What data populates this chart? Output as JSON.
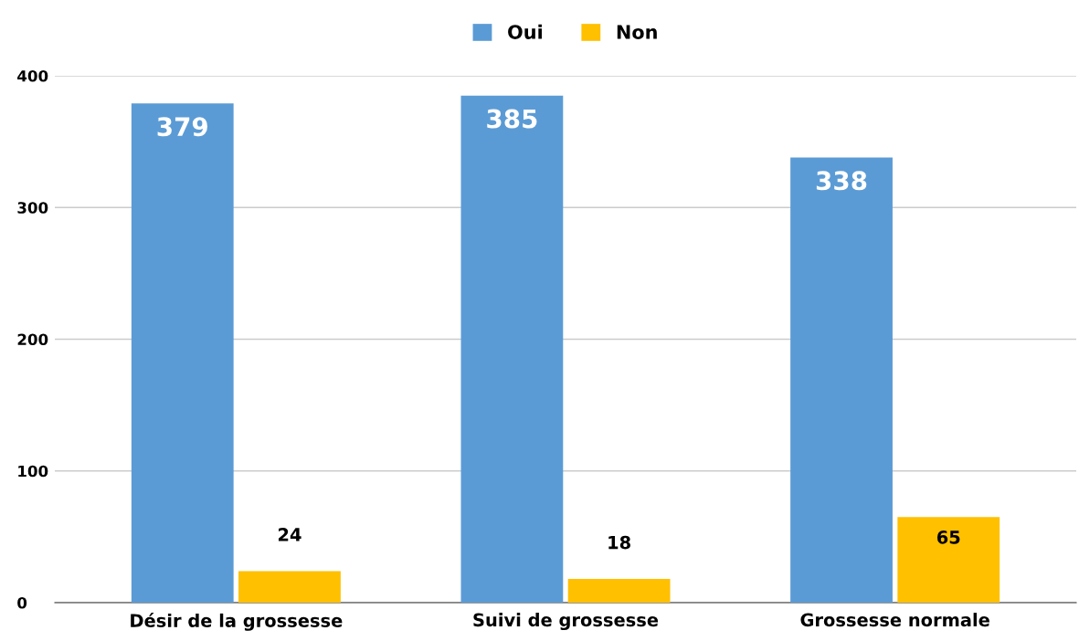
{
  "chart_data": {
    "type": "bar",
    "categories": [
      "Désir de la grossesse",
      "Suivi de grossesse",
      "Grossesse normale"
    ],
    "series": [
      {
        "name": "Oui",
        "color": "#5b9bd5",
        "values": [
          379,
          385,
          338
        ]
      },
      {
        "name": "Non",
        "color": "#ffc000",
        "values": [
          24,
          18,
          65
        ]
      }
    ],
    "ylim": [
      0,
      400
    ],
    "yticks": [
      0,
      100,
      200,
      300,
      400
    ],
    "grid": "y",
    "legend": "top",
    "data_labels": true
  }
}
